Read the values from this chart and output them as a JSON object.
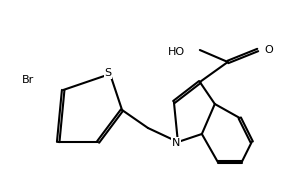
{
  "background_color": "#ffffff",
  "line_color": "#000000",
  "line_width": 1.5,
  "font_size": 8,
  "figsize": [
    2.81,
    1.78
  ],
  "dpi": 100,
  "atoms": {
    "Br_label": "Br",
    "S_label": "S",
    "N_label": "N",
    "HO_label": "HO",
    "O_label": "O"
  }
}
